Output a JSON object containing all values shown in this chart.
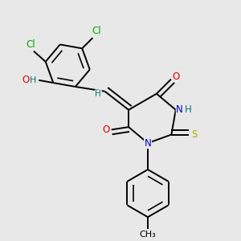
{
  "bg_color": "#e8e8e8",
  "bond_color": "#000000",
  "bond_width": 1.4,
  "atom_colors": {
    "C": "#000000",
    "N": "#0000cc",
    "O": "#dd0000",
    "S": "#aaaa00",
    "Cl": "#00aa00",
    "H": "#007777"
  },
  "font_size": 8.5
}
